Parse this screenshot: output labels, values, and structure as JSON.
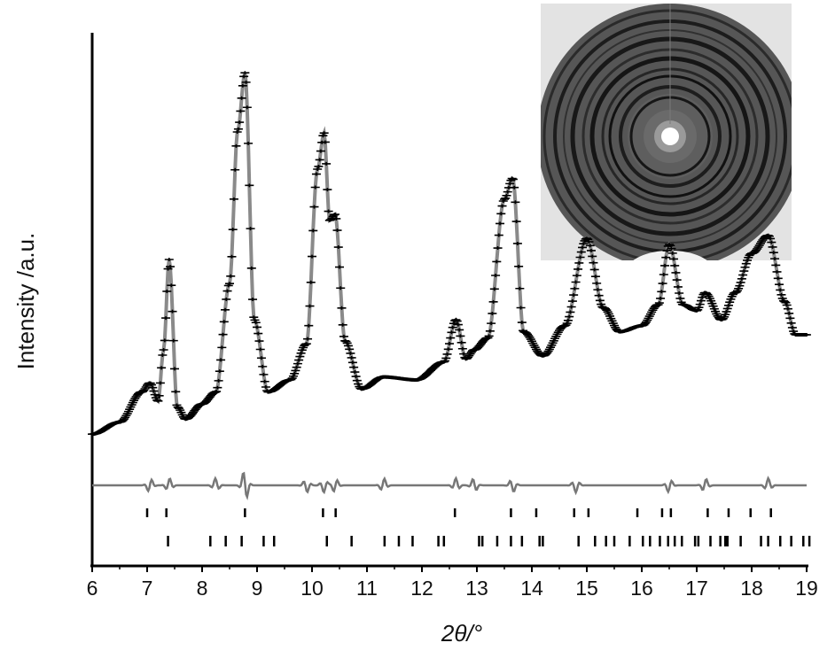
{
  "chart_data": {
    "type": "line",
    "xlabel": "2θ/°",
    "ylabel": "Intensity /a.u.",
    "xlim": [
      6,
      19
    ],
    "x_ticks": [
      6,
      7,
      8,
      9,
      10,
      11,
      12,
      13,
      14,
      15,
      16,
      17,
      18,
      19
    ],
    "y_ticks_shown": false,
    "grid": false,
    "legend": "none",
    "inset": "2D diffraction pattern image, top-right",
    "series": [
      {
        "kind": "observed",
        "style": "cross markers",
        "x": [
          6.0,
          6.5,
          6.9,
          7.05,
          7.2,
          7.3,
          7.4,
          7.55,
          7.7,
          8.0,
          8.25,
          8.5,
          8.65,
          8.78,
          8.95,
          9.2,
          9.6,
          9.9,
          10.1,
          10.22,
          10.32,
          10.42,
          10.6,
          10.9,
          11.3,
          11.9,
          12.4,
          12.62,
          12.8,
          12.95,
          13.2,
          13.5,
          13.65,
          13.85,
          14.2,
          14.6,
          15.0,
          15.3,
          15.6,
          16.0,
          16.3,
          16.5,
          16.75,
          17.0,
          17.15,
          17.45,
          17.7,
          18.0,
          18.3,
          18.6,
          18.8,
          19.0
        ],
        "y": [
          2,
          6,
          16,
          19,
          13,
          30,
          60,
          11,
          7,
          12,
          16,
          52,
          103,
          122,
          40,
          16,
          20,
          32,
          90,
          102,
          73,
          75,
          33,
          17,
          21,
          20,
          26,
          40,
          27,
          30,
          34,
          80,
          87,
          36,
          28,
          38,
          67,
          44,
          36,
          38,
          45,
          65,
          45,
          43,
          49,
          40,
          49,
          62,
          68,
          46,
          35,
          35
        ]
      },
      {
        "kind": "difference",
        "values_note": "residual curve, near zero"
      }
    ],
    "reflection_markers_row1": [
      7.0,
      7.35,
      8.78,
      10.2,
      10.43,
      12.6,
      13.62,
      14.08,
      14.77,
      15.03,
      15.92,
      16.37,
      16.53,
      17.2,
      17.58,
      17.98,
      18.35
    ],
    "reflection_markers_row2": [
      7.38,
      8.15,
      8.43,
      8.72,
      9.12,
      9.31,
      10.27,
      10.72,
      11.32,
      11.58,
      11.83,
      12.3,
      12.4,
      13.04,
      13.1,
      13.37,
      13.62,
      13.82,
      14.14,
      14.2,
      14.85,
      15.15,
      15.35,
      15.5,
      15.78,
      16.02,
      16.15,
      16.33,
      16.48,
      16.6,
      16.73,
      16.97,
      17.03,
      17.25,
      17.43,
      17.52,
      17.56,
      17.8,
      18.17,
      18.3,
      18.52,
      18.72,
      18.94,
      19.05
    ]
  }
}
